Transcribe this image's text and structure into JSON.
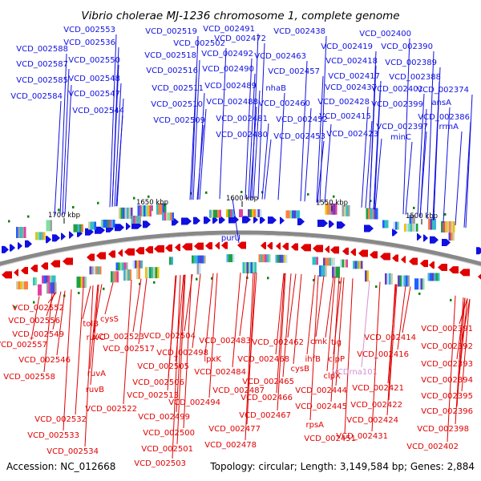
{
  "title": "Vibrio cholerae MJ-1236 chromosome 1, complete genome",
  "footer": {
    "accession": "Accession: NC_012668",
    "summary": "Topology: circular; Length: 3,149,584 bp; Genes: 2,884"
  },
  "ticks": [
    "1700 kbp",
    "1650 kbp",
    "1600 kbp",
    "1550 kbp",
    "1500 kbp"
  ],
  "colors": {
    "forward": "#1010e0",
    "reverse": "#e00000",
    "rna": "#d890d0",
    "backbone": "#888888",
    "rna_tick": "#108010"
  },
  "top_labels": [
    {
      "text": "VCD_002588"
    },
    {
      "text": "VCD_002587"
    },
    {
      "text": "VCD_002585"
    },
    {
      "text": "VCD_002584"
    },
    {
      "text": "VCD_002553"
    },
    {
      "text": "VCD_002536"
    },
    {
      "text": "VCD_002550"
    },
    {
      "text": "VCD_002548"
    },
    {
      "text": "VCD_002547"
    },
    {
      "text": "VCD_002544"
    },
    {
      "text": "VCD_002519"
    },
    {
      "text": "VCD_002518"
    },
    {
      "text": "VCD_002516"
    },
    {
      "text": "VCD_002511"
    },
    {
      "text": "VCD_002510"
    },
    {
      "text": "VCD_002509"
    },
    {
      "text": "VCD_002502"
    },
    {
      "text": "VCD_002491"
    },
    {
      "text": "VCD_002492"
    },
    {
      "text": "VCD_002490"
    },
    {
      "text": "VCD_002489"
    },
    {
      "text": "VCD_002488"
    },
    {
      "text": "VCD_002481"
    },
    {
      "text": "VCD_002480"
    },
    {
      "text": "VCD_002472"
    },
    {
      "text": "VCD_002463"
    },
    {
      "text": "VCD_002457"
    },
    {
      "text": "nhaB"
    },
    {
      "text": "VCD_002460"
    },
    {
      "text": "VCD_002452"
    },
    {
      "text": "VCD_002453"
    },
    {
      "text": "VCD_002438"
    },
    {
      "text": "VCD_002419"
    },
    {
      "text": "VCD_002418"
    },
    {
      "text": "VCD_002417"
    },
    {
      "text": "VCD_002437"
    },
    {
      "text": "VCD_002428"
    },
    {
      "text": "VCD_002415"
    },
    {
      "text": "VCD_002423"
    },
    {
      "text": "VCD_002400"
    },
    {
      "text": "VCD_002390"
    },
    {
      "text": "VCD_002389"
    },
    {
      "text": "VCD_002388"
    },
    {
      "text": "VCD_002401"
    },
    {
      "text": "VCD_002399"
    },
    {
      "text": "VCD_002397"
    },
    {
      "text": "minC"
    },
    {
      "text": "VCD_002374"
    },
    {
      "text": "ansA"
    },
    {
      "text": "VCD_002386"
    },
    {
      "text": "rrmA"
    },
    {
      "text": "purU"
    }
  ],
  "bottom_labels": [
    {
      "text": "VCD_002552"
    },
    {
      "text": "VCD_002556"
    },
    {
      "text": "VCD_002549"
    },
    {
      "text": "VCD_002557"
    },
    {
      "text": "VCD_002546"
    },
    {
      "text": "VCD_002558"
    },
    {
      "text": "tolB"
    },
    {
      "text": "cysS"
    },
    {
      "text": "ruvC"
    },
    {
      "text": "ruvA"
    },
    {
      "text": "ruvB"
    },
    {
      "text": "VCD_002523"
    },
    {
      "text": "VCD_002517"
    },
    {
      "text": "VCD_002522"
    },
    {
      "text": "VCD_002532"
    },
    {
      "text": "VCD_002533"
    },
    {
      "text": "VCD_002534"
    },
    {
      "text": "VCD_002504"
    },
    {
      "text": "VCD_002498"
    },
    {
      "text": "VCD_002505"
    },
    {
      "text": "VCD_002513"
    },
    {
      "text": "VCD_002506"
    },
    {
      "text": "VCD_002499"
    },
    {
      "text": "VCD_002500"
    },
    {
      "text": "VCD_002501"
    },
    {
      "text": "VCD_002503"
    },
    {
      "text": "VCD_002483"
    },
    {
      "text": "lpxK"
    },
    {
      "text": "VCD_002484"
    },
    {
      "text": "VCD_002494"
    },
    {
      "text": "VCD_002487"
    },
    {
      "text": "VCD_002477"
    },
    {
      "text": "VCD_002478"
    },
    {
      "text": "VCD_002462"
    },
    {
      "text": "VCD_002468"
    },
    {
      "text": "VCD_002465"
    },
    {
      "text": "VCD_002466"
    },
    {
      "text": "VCD_002467"
    },
    {
      "text": "cmk"
    },
    {
      "text": "tig"
    },
    {
      "text": "ihfB"
    },
    {
      "text": "clpP"
    },
    {
      "text": "cysB"
    },
    {
      "text": "clpX"
    },
    {
      "text": "VCD_002444"
    },
    {
      "text": "VCD_002445"
    },
    {
      "text": "rpsA"
    },
    {
      "text": "VCD_002451"
    },
    {
      "text": "VCDrna101"
    },
    {
      "text": "VCD_002414"
    },
    {
      "text": "VCD_002416"
    },
    {
      "text": "VCD_002421"
    },
    {
      "text": "VCD_002422"
    },
    {
      "text": "VCD_002424"
    },
    {
      "text": "VCD_002431"
    },
    {
      "text": "VCD_002391"
    },
    {
      "text": "VCD_002392"
    },
    {
      "text": "VCD_002393"
    },
    {
      "text": "VCD_002394"
    },
    {
      "text": "VCD_002395"
    },
    {
      "text": "VCD_002396"
    },
    {
      "text": "VCD_002398"
    },
    {
      "text": "VCD_002402"
    }
  ]
}
